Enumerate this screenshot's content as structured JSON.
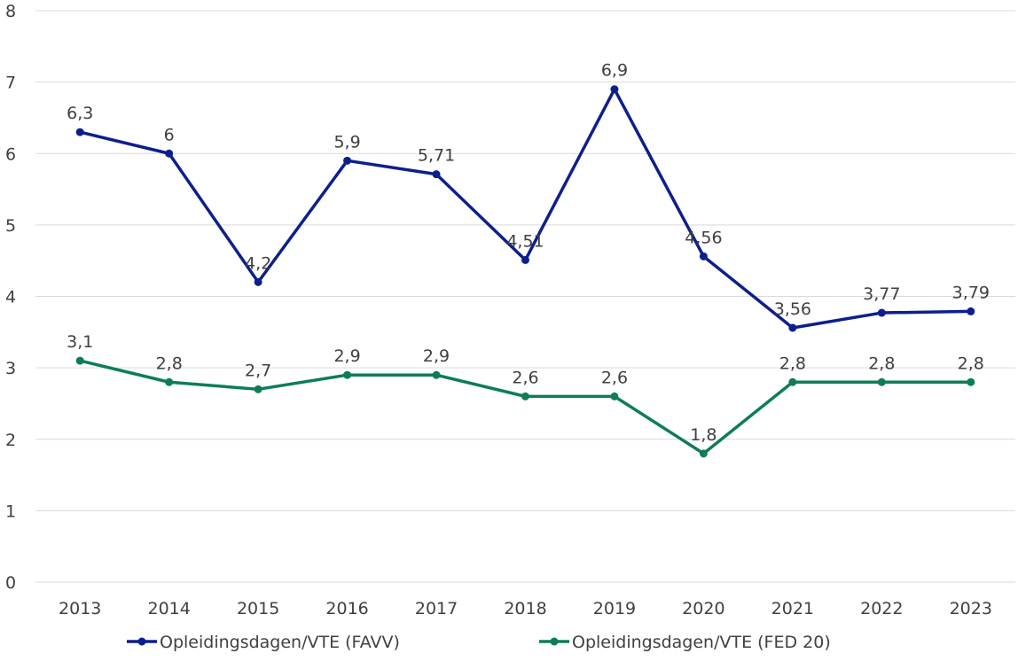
{
  "chart_data": {
    "type": "line",
    "categories": [
      "2013",
      "2014",
      "2015",
      "2016",
      "2017",
      "2018",
      "2019",
      "2020",
      "2021",
      "2022",
      "2023"
    ],
    "ylim": [
      0,
      8
    ],
    "yticks": [
      0,
      1,
      2,
      3,
      4,
      5,
      6,
      7,
      8
    ],
    "grid": true,
    "legend": "bottom",
    "series": [
      {
        "name": "Opleidingsdagen/VTE (FAVV)",
        "color": "#0d1f8c",
        "values": [
          6.3,
          6,
          4.2,
          5.9,
          5.71,
          4.51,
          6.9,
          4.56,
          3.56,
          3.77,
          3.79
        ],
        "labels": [
          "6,3",
          "6",
          "4,2",
          "5,9",
          "5,71",
          "4,51",
          "6,9",
          "4,56",
          "3,56",
          "3,77",
          "3,79"
        ]
      },
      {
        "name": "Opleidingsdagen/VTE (FED 20)",
        "color": "#0e7d55",
        "values": [
          3.1,
          2.8,
          2.7,
          2.9,
          2.9,
          2.6,
          2.6,
          1.8,
          2.8,
          2.8,
          2.8
        ],
        "labels": [
          "3,1",
          "2,8",
          "2,7",
          "2,9",
          "2,9",
          "2,6",
          "2,6",
          "1,8",
          "2,8",
          "2,8",
          "2,8"
        ]
      }
    ]
  }
}
